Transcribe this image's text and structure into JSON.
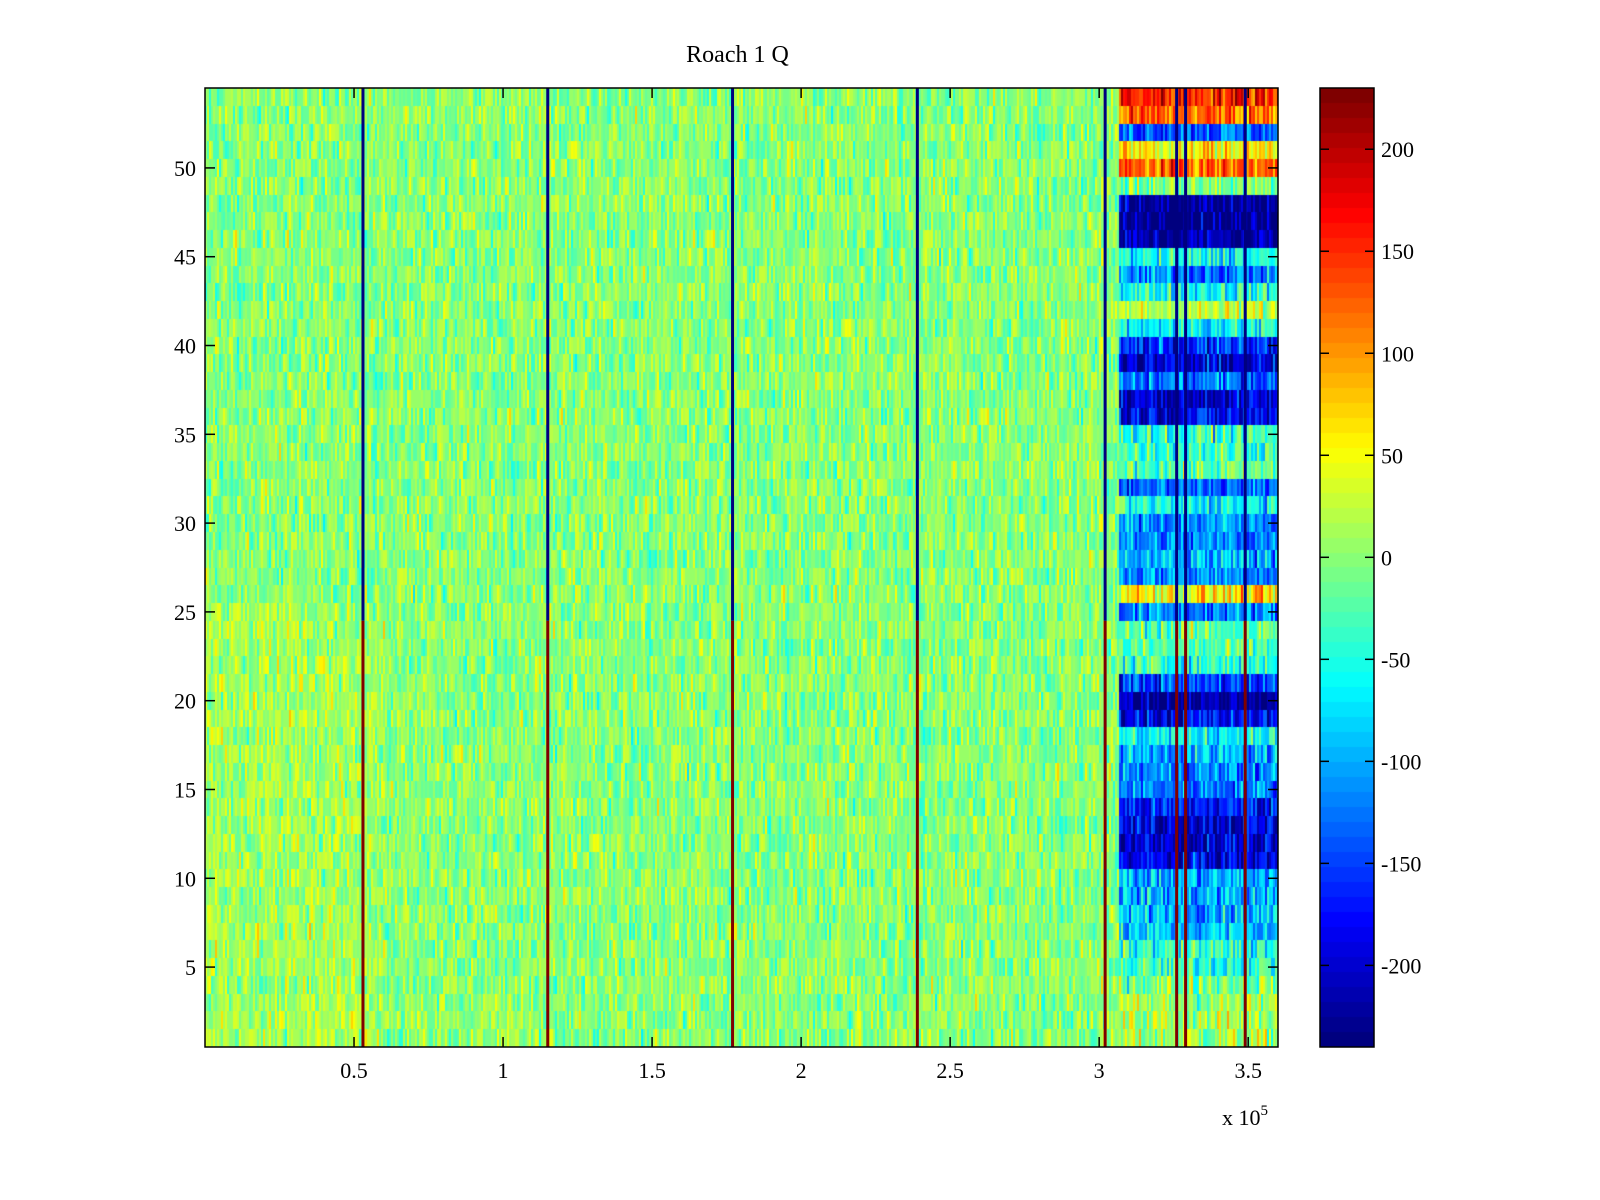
{
  "chart_data": {
    "type": "heatmap",
    "title": "Roach 1 Q",
    "xlabel": "",
    "ylabel": "",
    "x_multiplier_label": "x 10",
    "x_multiplier_exponent": "5",
    "xlim": [
      0,
      3.6
    ],
    "ylim": [
      0.5,
      54.5
    ],
    "rows": 54,
    "xticks": [
      0.5,
      1,
      1.5,
      2,
      2.5,
      3,
      3.5
    ],
    "xtick_labels": [
      "0.5",
      "1",
      "1.5",
      "2",
      "2.5",
      "3",
      "3.5"
    ],
    "yticks": [
      5,
      10,
      15,
      20,
      25,
      30,
      35,
      40,
      45,
      50
    ],
    "ytick_labels": [
      "5",
      "10",
      "15",
      "20",
      "25",
      "30",
      "35",
      "40",
      "45",
      "50"
    ],
    "colormap": "jet",
    "clim": [
      -240,
      230
    ],
    "colorbar_ticks": [
      200,
      150,
      100,
      50,
      0,
      -50,
      -100,
      -150,
      -200
    ],
    "colorbar_tick_labels": [
      "200",
      "150",
      "100",
      "50",
      "0",
      "-50",
      "-100",
      "-150",
      "-200"
    ],
    "background_mean": 0,
    "background_noise": 25,
    "anomaly_region_start_x": 3.06,
    "anomaly_row_means": [
      10,
      15,
      5,
      0,
      -40,
      -45,
      -90,
      -90,
      -100,
      -100,
      -190,
      -200,
      -190,
      -170,
      -120,
      -120,
      -100,
      -60,
      -180,
      -220,
      -150,
      -40,
      -30,
      -20,
      -120,
      60,
      -110,
      -100,
      -120,
      -110,
      -60,
      -130,
      -20,
      -30,
      -40,
      -180,
      -200,
      -130,
      -200,
      -160,
      -60,
      20,
      -50,
      -120,
      -60,
      -220,
      -230,
      -230,
      -10,
      120,
      60,
      -130,
      120,
      160
    ],
    "spike_lines": [
      {
        "x": 0.53,
        "lower_rows_value": 230,
        "upper_rows_value": -240
      },
      {
        "x": 1.15,
        "lower_rows_value": 230,
        "upper_rows_value": -240
      },
      {
        "x": 1.77,
        "lower_rows_value": 230,
        "upper_rows_value": -240
      },
      {
        "x": 2.39,
        "lower_rows_value": 230,
        "upper_rows_value": -240
      },
      {
        "x": 3.02,
        "lower_rows_value": 230,
        "upper_rows_value": -240
      },
      {
        "x": 3.26,
        "lower_rows_value": 230,
        "upper_rows_value": -240
      },
      {
        "x": 3.29,
        "lower_rows_value": 230,
        "upper_rows_value": -240
      },
      {
        "x": 3.49,
        "lower_rows_value": 230,
        "upper_rows_value": -240
      }
    ],
    "spike_switch_row": 24
  }
}
